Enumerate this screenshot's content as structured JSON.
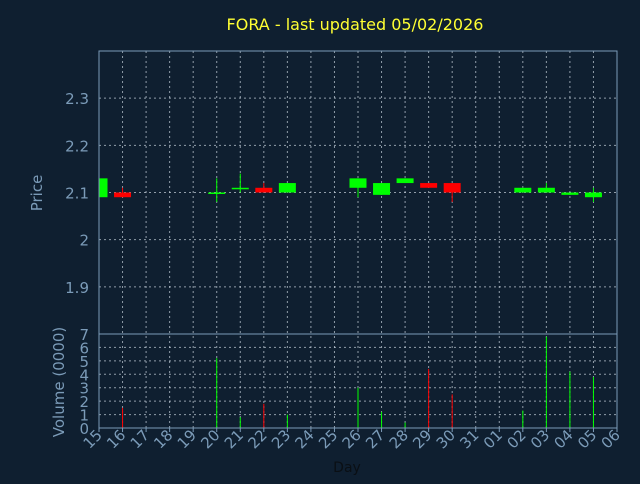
{
  "chart_data": [
    {
      "type": "candlestick",
      "title": "FORA - last updated 05/02/2026",
      "ylabel": "Price",
      "ylim": [
        1.8,
        2.4
      ],
      "yticks": [
        1.9,
        2,
        2.1,
        2.2,
        2.3
      ],
      "ytick_labels": [
        "1.9",
        "2",
        "2.1",
        "2.2",
        "2.3"
      ],
      "grid": true,
      "x_dates": [
        "15",
        "16",
        "17",
        "18",
        "19",
        "20",
        "21",
        "22",
        "23",
        "24",
        "25",
        "26",
        "27",
        "28",
        "29",
        "30",
        "31",
        "01",
        "02",
        "03",
        "04",
        "05",
        "06"
      ],
      "candles": [
        {
          "date": "15",
          "open": 2.09,
          "high": 2.13,
          "low": 2.09,
          "close": 2.13
        },
        {
          "date": "16",
          "open": 2.1,
          "high": 2.11,
          "low": 2.09,
          "close": 2.09
        },
        {
          "date": "20",
          "open": 2.1,
          "high": 2.13,
          "low": 2.08,
          "close": 2.1
        },
        {
          "date": "21",
          "open": 2.11,
          "high": 2.14,
          "low": 2.1,
          "close": 2.11
        },
        {
          "date": "22",
          "open": 2.11,
          "high": 2.12,
          "low": 2.1,
          "close": 2.1
        },
        {
          "date": "23",
          "open": 2.1,
          "high": 2.12,
          "low": 2.1,
          "close": 2.12
        },
        {
          "date": "26",
          "open": 2.11,
          "high": 2.13,
          "low": 2.09,
          "close": 2.13
        },
        {
          "date": "27",
          "open": 2.095,
          "high": 2.12,
          "low": 2.095,
          "close": 2.12
        },
        {
          "date": "28",
          "open": 2.12,
          "high": 2.13,
          "low": 2.12,
          "close": 2.13
        },
        {
          "date": "29",
          "open": 2.12,
          "high": 2.12,
          "low": 2.11,
          "close": 2.11
        },
        {
          "date": "30",
          "open": 2.12,
          "high": 2.12,
          "low": 2.08,
          "close": 2.1
        },
        {
          "date": "02",
          "open": 2.1,
          "high": 2.11,
          "low": 2.1,
          "close": 2.11
        },
        {
          "date": "03",
          "open": 2.1,
          "high": 2.12,
          "low": 2.1,
          "close": 2.11
        },
        {
          "date": "04",
          "open": 2.095,
          "high": 2.1,
          "low": 2.095,
          "close": 2.1
        },
        {
          "date": "05",
          "open": 2.09,
          "high": 2.11,
          "low": 2.08,
          "close": 2.1
        }
      ],
      "up_color": "#00ff00",
      "down_color": "#ff0000"
    },
    {
      "type": "bar",
      "ylabel": "Volume (0000)",
      "xlabel": "Day",
      "ylim": [
        0,
        7
      ],
      "yticks": [
        0,
        1,
        2,
        3,
        4,
        5,
        6,
        7
      ],
      "ytick_labels": [
        "0",
        "1",
        "2",
        "3",
        "4",
        "5",
        "6",
        "7"
      ],
      "grid": true,
      "categories": [
        "15",
        "16",
        "20",
        "21",
        "22",
        "23",
        "26",
        "27",
        "28",
        "29",
        "30",
        "02",
        "03",
        "04",
        "05"
      ],
      "values": [
        0.2,
        1.5,
        5.2,
        0.8,
        1.8,
        1.0,
        3.0,
        1.2,
        0.4,
        4.4,
        2.5,
        1.3,
        6.8,
        4.2,
        3.8
      ],
      "direction": [
        "up",
        "down",
        "up",
        "up",
        "down",
        "up",
        "up",
        "up",
        "up",
        "down",
        "down",
        "up",
        "up",
        "up",
        "up"
      ]
    }
  ],
  "colors": {
    "background": "#0f1f30",
    "axis": "#7b9bb8",
    "grid": "#c8d3dd",
    "title": "#ffff33",
    "label": "#7b9bb8"
  }
}
